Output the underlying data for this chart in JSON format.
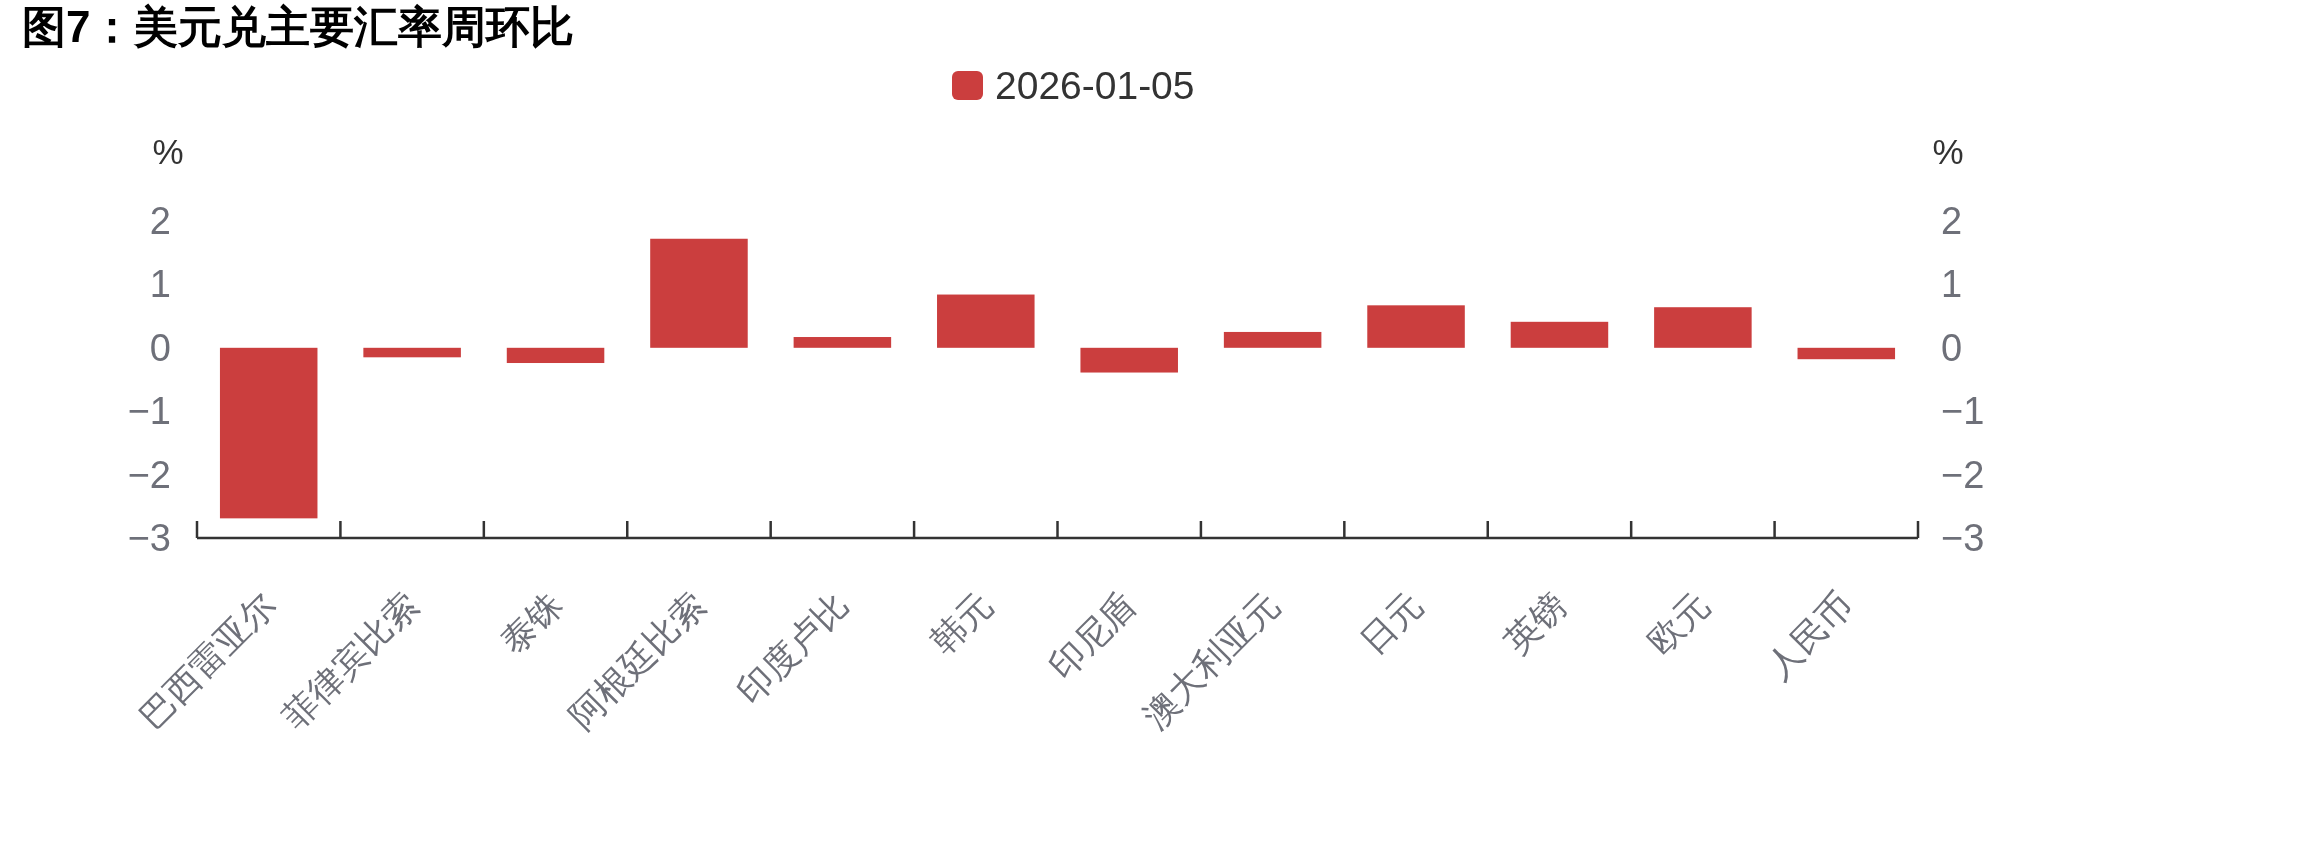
{
  "chart_data": {
    "type": "bar",
    "title": "图7：美元兑主要汇率周环比",
    "ylabel": "%",
    "y2label": "%",
    "categories": [
      "巴西雷亚尔",
      "菲律宾比索",
      "泰铢",
      "阿根廷比索",
      "印度卢比",
      "韩元",
      "印尼盾",
      "澳大利亚元",
      "日元",
      "英镑",
      "欧元",
      "人民币"
    ],
    "series": [
      {
        "name": "2026-01-05",
        "color": "#cb3e3e",
        "values": [
          -2.69,
          -0.15,
          -0.24,
          1.72,
          0.17,
          0.84,
          -0.39,
          0.25,
          0.67,
          0.41,
          0.64,
          -0.18
        ]
      }
    ],
    "ylim": [
      -3,
      2
    ],
    "yticks": [
      {
        "value": -3,
        "label": "−3"
      },
      {
        "value": -2,
        "label": "−2"
      },
      {
        "value": -1,
        "label": "−1"
      },
      0,
      1,
      2
    ],
    "y2lim": [
      -3,
      2
    ],
    "y2ticks": [
      {
        "value": -3,
        "label": "−3"
      },
      {
        "value": -2,
        "label": "−2"
      },
      {
        "value": -1,
        "label": "−1"
      },
      0,
      1,
      2
    ],
    "legend": "top"
  }
}
